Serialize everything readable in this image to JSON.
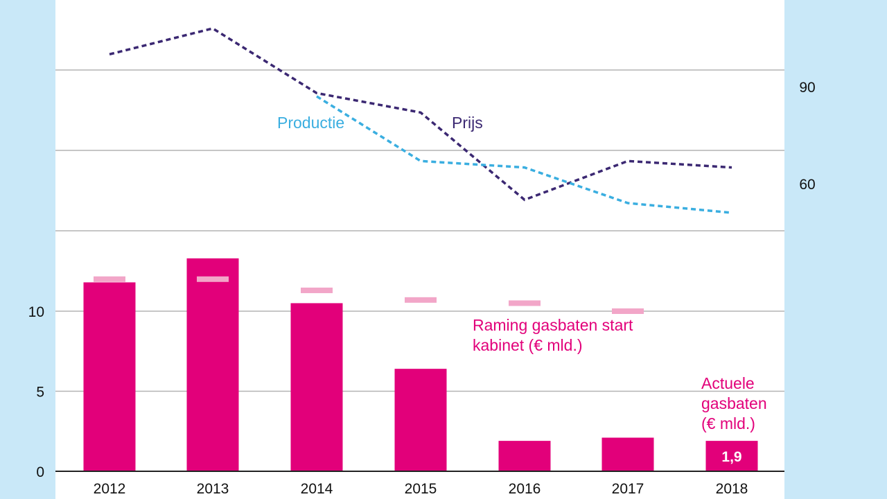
{
  "colors": {
    "background": "#c9e8f8",
    "panel": "#ffffff",
    "bar": "#e2007a",
    "forecast_marker": "#f2a6c8",
    "prijs_line": "#3b2872",
    "productie_line": "#3aaee0",
    "gridline": "#b3b3b3",
    "axis": "#222222",
    "bar_label_text": "#ffffff"
  },
  "chart_data": {
    "type": "bar",
    "categories": [
      "2012",
      "2013",
      "2014",
      "2015",
      "2016",
      "2017",
      "2018"
    ],
    "bars": {
      "name": "Actuele gasbaten (€ mld.)",
      "values": [
        11.8,
        13.3,
        10.5,
        6.4,
        1.9,
        2.1,
        1.9
      ],
      "data_labels": [
        "",
        "",
        "",
        "",
        "",
        "",
        "1,9"
      ]
    },
    "forecast": {
      "name": "Raming gasbaten start kabinet (€ mld.)",
      "values": [
        12.0,
        12.0,
        11.3,
        10.7,
        10.5,
        10.0,
        null
      ]
    },
    "lines": [
      {
        "name": "Prijs",
        "values": [
          100,
          108,
          88,
          82,
          55,
          67,
          65
        ]
      },
      {
        "name": "Productie",
        "values": [
          null,
          null,
          87,
          67,
          65,
          54,
          51
        ]
      }
    ],
    "left_axis": {
      "ticks": [
        "0",
        "5",
        "10"
      ],
      "tick_values": [
        0,
        5,
        10
      ],
      "ylim": [
        0,
        25
      ]
    },
    "right_axis": {
      "ticks": [
        "60",
        "90"
      ],
      "tick_values": [
        60,
        90
      ],
      "ylim": [
        30,
        120
      ]
    },
    "annotations": {
      "productie": "Productie",
      "prijs": "Prijs",
      "raming_line1": "Raming gasbaten start",
      "raming_line2": "kabinet (€ mld.)",
      "actuele_line1": "Actuele",
      "actuele_line2": "gasbaten",
      "actuele_line3": "(€ mld.)"
    },
    "grid": true,
    "legend": "none"
  }
}
